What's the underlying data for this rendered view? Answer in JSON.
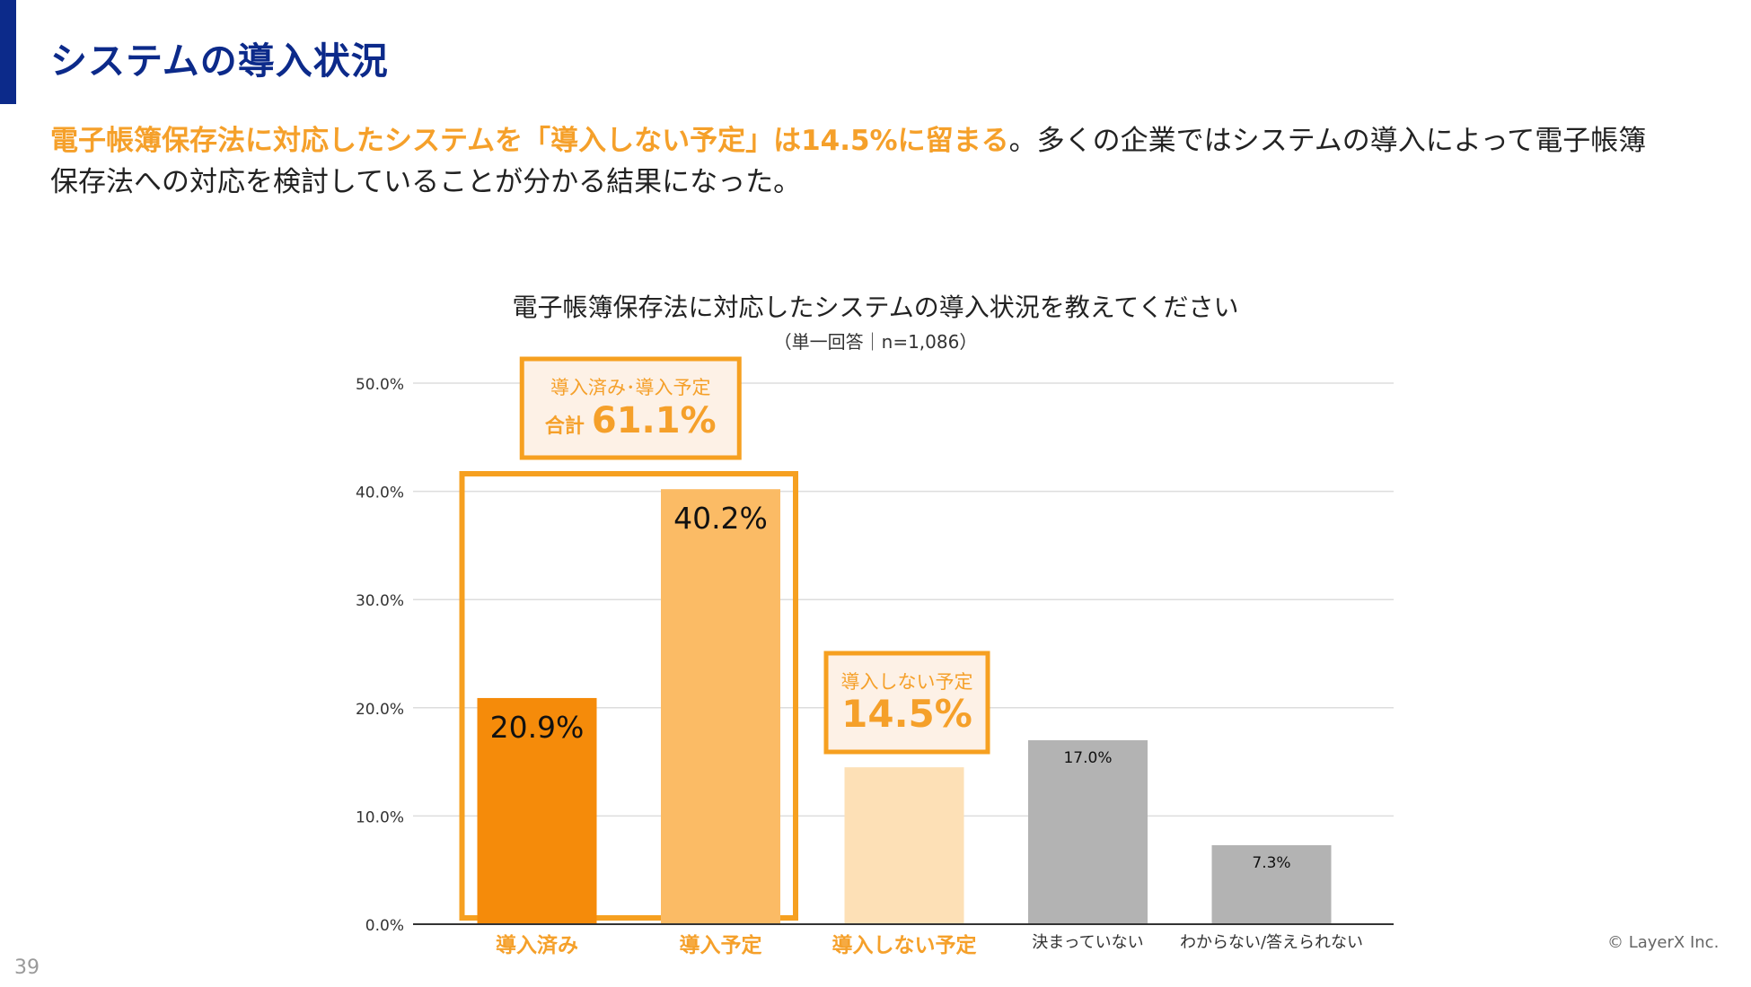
{
  "header": {
    "title": "システムの導入状況"
  },
  "lead": {
    "highlight": "電子帳簿保存法に対応したシステムを「導入しない予定」は14.5%に留まる",
    "rest": "。多くの企業ではシステムの導入によって電子帳簿保存法への対応を検討していることが分かる結果になった。"
  },
  "colors": {
    "title_blue": "#0c2a8a",
    "highlight_orange": "#f5a02a",
    "box_orange": "#f6a020",
    "box_fill": "#fdf1e6"
  },
  "chart_data": {
    "type": "bar",
    "title": "電子帳簿保存法に対応したシステムの導入状況を教えてください",
    "subtitle": "（単一回答｜n=1,086）",
    "categories": [
      "導入済み",
      "導入予定",
      "導入しない予定",
      "決まっていない",
      "わからない/答えられない"
    ],
    "values": [
      20.9,
      40.2,
      14.5,
      17.0,
      7.3
    ],
    "value_labels": [
      "20.9%",
      "40.2%",
      "",
      "17.0%",
      "7.3%"
    ],
    "bar_colors": [
      "#f58b0a",
      "#fbbb65",
      "#fde0b6",
      "#b3b3b3",
      "#b3b3b3"
    ],
    "category_label_colors": [
      "#f5a02a",
      "#f5a02a",
      "#f5a02a",
      "#333333",
      "#333333"
    ],
    "yticks": [
      "0.0%",
      "10.0%",
      "20.0%",
      "30.0%",
      "40.0%",
      "50.0%"
    ],
    "ylim": [
      0,
      50
    ],
    "grid": true,
    "callouts": {
      "combined": {
        "line1": "導入済み･導入予定",
        "prefix": "合計",
        "value": "61.1%"
      },
      "not_planned": {
        "line1": "導入しない予定",
        "value": "14.5%"
      }
    }
  },
  "footer": {
    "page_number": "39",
    "copyright": "© LayerX Inc."
  }
}
